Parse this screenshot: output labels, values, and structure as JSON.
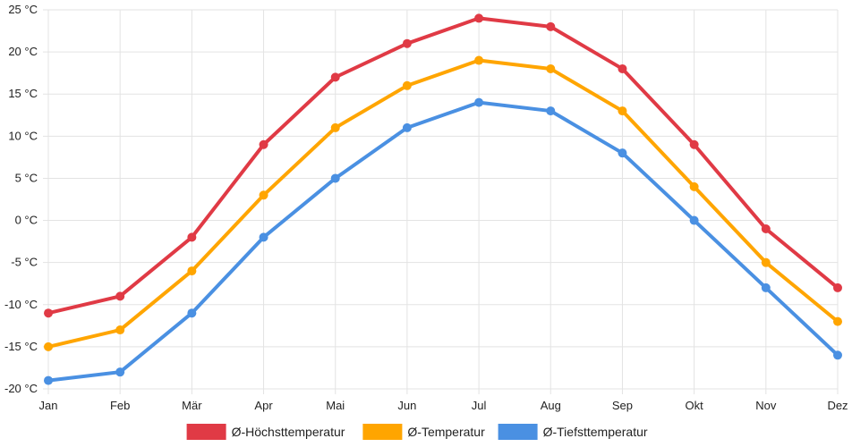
{
  "chart_data": {
    "type": "line",
    "categories": [
      "Jan",
      "Feb",
      "Mär",
      "Apr",
      "Mai",
      "Jun",
      "Jul",
      "Aug",
      "Sep",
      "Okt",
      "Nov",
      "Dez"
    ],
    "series": [
      {
        "name": "Ø-Höchsttemperatur",
        "color": "#e03a45",
        "values": [
          -11,
          -9,
          -2,
          9,
          17,
          21,
          24,
          23,
          18,
          9,
          -1,
          -8
        ]
      },
      {
        "name": "Ø-Temperatur",
        "color": "#ffa500",
        "values": [
          -15,
          -13,
          -6,
          3,
          11,
          16,
          19,
          18,
          13,
          4,
          -5,
          -12
        ]
      },
      {
        "name": "Ø-Tiefsttemperatur",
        "color": "#4a90e2",
        "values": [
          -19,
          -18,
          -11,
          -2,
          5,
          11,
          14,
          13,
          8,
          0,
          -8,
          -16
        ]
      }
    ],
    "yticks": [
      "25 °C",
      "20 °C",
      "15 °C",
      "10 °C",
      "5 °C",
      "0 °C",
      "-5 °C",
      "-10 °C",
      "-15 °C",
      "-20 °C"
    ],
    "ylim": [
      -20,
      25
    ],
    "grid": true,
    "legend_position": "bottom"
  }
}
